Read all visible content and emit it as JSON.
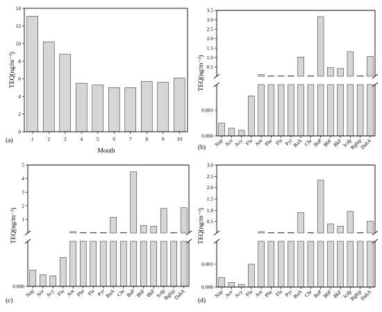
{
  "chart_data": [
    {
      "panel": "(a)",
      "type": "bar",
      "xlabel": "Mouth",
      "ylabel": "TEQ(ng/m⁻³)",
      "categories": [
        "1",
        "2",
        "3",
        "4",
        "5",
        "6",
        "7",
        "8",
        "9",
        "10"
      ],
      "values": [
        13.1,
        10.2,
        8.8,
        5.5,
        5.3,
        5.0,
        5.0,
        5.7,
        5.6,
        6.1
      ],
      "ylim": [
        0,
        14
      ],
      "yticks": [
        "0",
        "2",
        "4",
        "6",
        "8",
        "10",
        "12",
        "14"
      ]
    },
    {
      "panel": "(b)",
      "type": "bar",
      "xlabel": "",
      "ylabel": "TEQ(ng/m⁻³)",
      "categories": [
        "Nap",
        "Ace",
        "Acy",
        "Flu",
        "Ant",
        "Phe",
        "Fla",
        "Pyr",
        "BaA",
        "Chr",
        "BaP",
        "BbF",
        "BkF",
        "Icdp",
        "Bghip",
        "DahA"
      ],
      "values": [
        0.0005,
        0.0003,
        0.00022,
        0.00156,
        0.09,
        0.02,
        0.02,
        0.03,
        1.02,
        0.03,
        3.17,
        0.47,
        0.41,
        1.3,
        0.03,
        1.06
      ],
      "lower_ylim": [
        0,
        0.002
      ],
      "lower_yticks": [
        "0.000",
        "0.001"
      ],
      "upper_ylim": [
        0.0,
        3.5
      ],
      "upper_yticks": [
        "0.5",
        "1.0",
        "1.5",
        "2.0",
        "2.5",
        "3.0",
        "3.5"
      ]
    },
    {
      "panel": "(c)",
      "type": "bar",
      "xlabel": "",
      "ylabel": "TEQ(ng/m⁻³)",
      "categories": [
        "Nap",
        "Ace",
        "Acy",
        "Flu",
        "Ant",
        "Phe",
        "Fla",
        "Pyr",
        "BaA",
        "Chr",
        "BaP",
        "BbF",
        "BkF",
        "Icdp",
        "Bghip",
        "DahA"
      ],
      "values": [
        0.0009,
        0.00065,
        0.00058,
        0.0016,
        0.1,
        0.03,
        0.03,
        0.03,
        1.15,
        0.04,
        4.5,
        0.55,
        0.5,
        1.8,
        0.03,
        1.85
      ],
      "lower_ylim": [
        0,
        0.0025
      ],
      "lower_yticks": [
        "0.000"
      ],
      "upper_ylim": [
        0,
        5
      ],
      "upper_yticks": [
        "1",
        "2",
        "3",
        "4",
        "5"
      ]
    },
    {
      "panel": "(d)",
      "type": "bar",
      "xlabel": "",
      "ylabel": "TEQ(ng/m⁻³)",
      "categories": [
        "Nap",
        "Ace",
        "Acy",
        "Flu",
        "Ant",
        "Phe",
        "Fla",
        "Pyr",
        "BaA",
        "Chr",
        "BaP",
        "BbF",
        "BkF",
        "Icdp",
        "Bghip",
        "DahA"
      ],
      "values": [
        0.00042,
        0.0002,
        0.00012,
        0.001,
        0.06,
        0.02,
        0.02,
        0.02,
        0.9,
        0.02,
        2.33,
        0.4,
        0.3,
        0.95,
        0.02,
        0.52
      ],
      "lower_ylim": [
        0,
        0.002
      ],
      "lower_yticks": [
        "0.000",
        "0.001"
      ],
      "upper_ylim": [
        0.0,
        3.0
      ],
      "upper_yticks": [
        "0.5",
        "1.0",
        "1.5",
        "2.0",
        "2.5",
        "3.0"
      ]
    }
  ]
}
